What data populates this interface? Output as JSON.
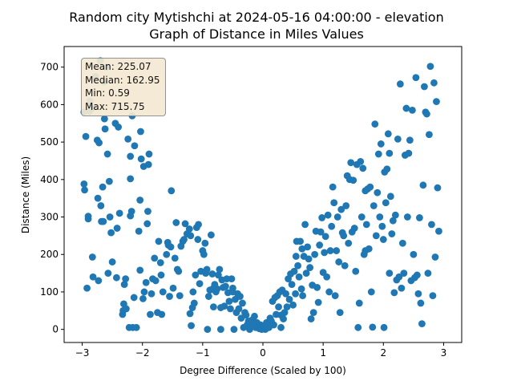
{
  "chart_data": {
    "type": "scatter",
    "title": "Random city Mytishchi at 2024-05-16 04:00:00  - elevation",
    "subtitle": "Graph of Distance in Miles Values",
    "xlabel": "Degree Difference (Scaled by 100)",
    "ylabel": "Distance (Miles)",
    "xlim": [
      -3.3,
      3.3
    ],
    "ylim": [
      -35,
      755
    ],
    "xticks": [
      -3,
      -2,
      -1,
      0,
      1,
      2,
      3
    ],
    "yticks": [
      0,
      100,
      200,
      300,
      400,
      500,
      600,
      700
    ],
    "grid": false,
    "color": "#1f77b4",
    "stats": {
      "mean": "Mean: 225.07",
      "median": "Median: 162.95",
      "min": "Min: 0.59",
      "max": "Max: 715.75"
    },
    "points": [
      [
        -2.97,
        580
      ],
      [
        -2.97,
        388
      ],
      [
        -2.96,
        372
      ],
      [
        -2.94,
        515
      ],
      [
        -2.92,
        110
      ],
      [
        -2.9,
        295
      ],
      [
        -2.9,
        302
      ],
      [
        -2.88,
        582
      ],
      [
        -2.87,
        610
      ],
      [
        -2.84,
        590
      ],
      [
        -2.83,
        193
      ],
      [
        -2.82,
        140
      ],
      [
        -2.78,
        675
      ],
      [
        -2.75,
        505
      ],
      [
        -2.74,
        350
      ],
      [
        -2.73,
        130
      ],
      [
        -2.72,
        498
      ],
      [
        -2.7,
        717
      ],
      [
        -2.69,
        330
      ],
      [
        -2.68,
        288
      ],
      [
        -2.66,
        380
      ],
      [
        -2.65,
        288
      ],
      [
        -2.64,
        660
      ],
      [
        -2.63,
        562
      ],
      [
        -2.62,
        535
      ],
      [
        -2.6,
        700
      ],
      [
        -2.58,
        468
      ],
      [
        -2.57,
        150
      ],
      [
        -2.55,
        395
      ],
      [
        -2.54,
        300
      ],
      [
        -2.52,
        258
      ],
      [
        -2.5,
        180
      ],
      [
        -2.45,
        550
      ],
      [
        -2.43,
        138
      ],
      [
        -2.42,
        270
      ],
      [
        -2.4,
        540
      ],
      [
        -2.38,
        310
      ],
      [
        -2.33,
        40
      ],
      [
        -2.32,
        50
      ],
      [
        -2.31,
        68
      ],
      [
        -2.3,
        120
      ],
      [
        -2.28,
        135
      ],
      [
        -2.27,
        55
      ],
      [
        -2.24,
        508
      ],
      [
        -2.22,
        5
      ],
      [
        -2.2,
        402
      ],
      [
        -2.2,
        462
      ],
      [
        -2.2,
        303
      ],
      [
        -2.18,
        315
      ],
      [
        -2.17,
        570
      ],
      [
        -2.16,
        5
      ],
      [
        -2.14,
        85
      ],
      [
        -2.13,
        490
      ],
      [
        -2.1,
        5
      ],
      [
        -2.06,
        262
      ],
      [
        -2.04,
        158
      ],
      [
        -2.04,
        345
      ],
      [
        -2.03,
        528
      ],
      [
        -2.02,
        455
      ],
      [
        -1.99,
        82
      ],
      [
        -1.98,
        435
      ],
      [
        -1.97,
        100
      ],
      [
        -1.94,
        125
      ],
      [
        -1.92,
        282
      ],
      [
        -1.91,
        315
      ],
      [
        -1.9,
        440
      ],
      [
        -1.89,
        468
      ],
      [
        -1.87,
        40
      ],
      [
        -1.85,
        95
      ],
      [
        -1.83,
        135
      ],
      [
        -1.8,
        190
      ],
      [
        -1.78,
        130
      ],
      [
        -1.75,
        45
      ],
      [
        -1.73,
        235
      ],
      [
        -1.7,
        178
      ],
      [
        -1.69,
        145
      ],
      [
        -1.68,
        40
      ],
      [
        -1.66,
        100
      ],
      [
        -1.6,
        200
      ],
      [
        -1.58,
        232
      ],
      [
        -1.57,
        225
      ],
      [
        -1.55,
        88
      ],
      [
        -1.53,
        220
      ],
      [
        -1.52,
        370
      ],
      [
        -1.49,
        110
      ],
      [
        -1.46,
        190
      ],
      [
        -1.44,
        285
      ],
      [
        -1.42,
        160
      ],
      [
        -1.4,
        155
      ],
      [
        -1.38,
        90
      ],
      [
        -1.36,
        222
      ],
      [
        -1.33,
        235
      ],
      [
        -1.31,
        240
      ],
      [
        -1.29,
        282
      ],
      [
        -1.26,
        255
      ],
      [
        -1.22,
        268
      ],
      [
        -1.2,
        250
      ],
      [
        -1.19,
        10
      ],
      [
        -1.17,
        58
      ],
      [
        -1.16,
        100
      ],
      [
        -1.14,
        70
      ],
      [
        -1.12,
        145
      ],
      [
        -1.1,
        272
      ],
      [
        -1.08,
        240
      ],
      [
        -1.07,
        280
      ],
      [
        -1.05,
        122
      ],
      [
        -1.03,
        155
      ],
      [
        -1.0,
        210
      ],
      [
        -0.98,
        200
      ],
      [
        -0.96,
        230
      ],
      [
        -0.95,
        150
      ],
      [
        -0.93,
        160
      ],
      [
        -0.92,
        0
      ],
      [
        -0.9,
        88
      ],
      [
        -0.88,
        105
      ],
      [
        -0.86,
        252
      ],
      [
        -0.84,
        148
      ],
      [
        -0.82,
        110
      ],
      [
        -0.8,
        120
      ],
      [
        -0.78,
        100
      ],
      [
        -0.76,
        108
      ],
      [
        -0.74,
        145
      ],
      [
        -0.72,
        160
      ],
      [
        -0.7,
        0
      ],
      [
        -0.68,
        132
      ],
      [
        -0.66,
        112
      ],
      [
        -0.64,
        62
      ],
      [
        -0.62,
        115
      ],
      [
        -0.6,
        135
      ],
      [
        -0.58,
        98
      ],
      [
        -0.56,
        75
      ],
      [
        -0.54,
        55
      ],
      [
        -0.52,
        135
      ],
      [
        -0.5,
        110
      ],
      [
        -0.48,
        0
      ],
      [
        -0.46,
        80
      ],
      [
        -0.44,
        45
      ],
      [
        -0.42,
        95
      ],
      [
        -0.4,
        55
      ],
      [
        -0.38,
        88
      ],
      [
        -0.36,
        30
      ],
      [
        -0.34,
        70
      ],
      [
        -0.32,
        5
      ],
      [
        -0.3,
        45
      ],
      [
        -0.28,
        38
      ],
      [
        -0.26,
        12
      ],
      [
        -0.24,
        22
      ],
      [
        -0.22,
        0
      ],
      [
        -0.2,
        8
      ],
      [
        -0.18,
        25
      ],
      [
        -0.16,
        15
      ],
      [
        -0.14,
        35
      ],
      [
        -0.12,
        5
      ],
      [
        -0.1,
        18
      ],
      [
        -0.08,
        8
      ],
      [
        -0.06,
        2
      ],
      [
        -0.04,
        12
      ],
      [
        -0.02,
        0
      ],
      [
        0.0,
        3
      ],
      [
        0.02,
        10
      ],
      [
        0.04,
        0
      ],
      [
        0.06,
        18
      ],
      [
        0.08,
        8
      ],
      [
        0.1,
        5
      ],
      [
        0.12,
        30
      ],
      [
        0.14,
        22
      ],
      [
        0.16,
        75
      ],
      [
        0.18,
        12
      ],
      [
        0.2,
        85
      ],
      [
        0.22,
        40
      ],
      [
        0.24,
        90
      ],
      [
        0.26,
        60
      ],
      [
        0.28,
        100
      ],
      [
        0.3,
        5
      ],
      [
        0.32,
        105
      ],
      [
        0.34,
        28
      ],
      [
        0.36,
        45
      ],
      [
        0.38,
        95
      ],
      [
        0.4,
        60
      ],
      [
        0.42,
        135
      ],
      [
        0.44,
        80
      ],
      [
        0.46,
        148
      ],
      [
        0.48,
        120
      ],
      [
        0.5,
        65
      ],
      [
        0.52,
        155
      ],
      [
        0.54,
        95
      ],
      [
        0.55,
        195
      ],
      [
        0.56,
        235
      ],
      [
        0.58,
        170
      ],
      [
        0.6,
        140
      ],
      [
        0.62,
        235
      ],
      [
        0.64,
        108
      ],
      [
        0.65,
        215
      ],
      [
        0.66,
        90
      ],
      [
        0.68,
        195
      ],
      [
        0.7,
        280
      ],
      [
        0.72,
        150
      ],
      [
        0.74,
        220
      ],
      [
        0.76,
        188
      ],
      [
        0.78,
        165
      ],
      [
        0.8,
        28
      ],
      [
        0.82,
        118
      ],
      [
        0.84,
        45
      ],
      [
        0.86,
        200
      ],
      [
        0.88,
        262
      ],
      [
        0.9,
        112
      ],
      [
        0.92,
        72
      ],
      [
        0.94,
        225
      ],
      [
        0.96,
        260
      ],
      [
        0.98,
        298
      ],
      [
        1.0,
        152
      ],
      [
        1.02,
        205
      ],
      [
        1.04,
        248
      ],
      [
        1.06,
        140
      ],
      [
        1.08,
        305
      ],
      [
        1.1,
        100
      ],
      [
        1.12,
        210
      ],
      [
        1.14,
        275
      ],
      [
        1.16,
        380
      ],
      [
        1.18,
        338
      ],
      [
        1.2,
        90
      ],
      [
        1.22,
        210
      ],
      [
        1.24,
        300
      ],
      [
        1.26,
        180
      ],
      [
        1.28,
        45
      ],
      [
        1.3,
        320
      ],
      [
        1.32,
        258
      ],
      [
        1.34,
        250
      ],
      [
        1.36,
        170
      ],
      [
        1.38,
        330
      ],
      [
        1.4,
        410
      ],
      [
        1.42,
        230
      ],
      [
        1.44,
        400
      ],
      [
        1.46,
        445
      ],
      [
        1.48,
        260
      ],
      [
        1.5,
        398
      ],
      [
        1.52,
        270
      ],
      [
        1.54,
        155
      ],
      [
        1.56,
        440
      ],
      [
        1.58,
        5
      ],
      [
        1.6,
        70
      ],
      [
        1.62,
        448
      ],
      [
        1.64,
        300
      ],
      [
        1.66,
        430
      ],
      [
        1.68,
        200
      ],
      [
        1.7,
        370
      ],
      [
        1.72,
        280
      ],
      [
        1.74,
        375
      ],
      [
        1.76,
        215
      ],
      [
        1.78,
        380
      ],
      [
        1.8,
        100
      ],
      [
        1.82,
        6
      ],
      [
        1.84,
        330
      ],
      [
        1.86,
        548
      ],
      [
        1.88,
        250
      ],
      [
        1.9,
        365
      ],
      [
        1.92,
        468
      ],
      [
        1.94,
        300
      ],
      [
        1.96,
        495
      ],
      [
        1.98,
        275
      ],
      [
        2.0,
        240
      ],
      [
        2.02,
        420
      ],
      [
        2.04,
        338
      ],
      [
        2.06,
        428
      ],
      [
        2.08,
        522
      ],
      [
        2.1,
        470
      ],
      [
        2.12,
        355
      ],
      [
        2.14,
        255
      ],
      [
        2.16,
        290
      ],
      [
        2.18,
        98
      ],
      [
        2.2,
        305
      ],
      [
        2.22,
        132
      ],
      [
        2.24,
        508
      ],
      [
        2.26,
        140
      ],
      [
        2.28,
        655
      ],
      [
        2.3,
        110
      ],
      [
        2.32,
        230
      ],
      [
        2.34,
        150
      ],
      [
        2.36,
        465
      ],
      [
        2.38,
        590
      ],
      [
        2.4,
        300
      ],
      [
        2.42,
        470
      ],
      [
        2.44,
        505
      ],
      [
        2.46,
        130
      ],
      [
        2.48,
        585
      ],
      [
        2.5,
        200
      ],
      [
        2.52,
        138
      ],
      [
        2.54,
        672
      ],
      [
        2.56,
        145
      ],
      [
        2.58,
        95
      ],
      [
        2.6,
        298
      ],
      [
        2.62,
        70
      ],
      [
        2.64,
        15
      ],
      [
        2.66,
        385
      ],
      [
        2.68,
        648
      ],
      [
        2.7,
        580
      ],
      [
        2.72,
        575
      ],
      [
        2.74,
        150
      ],
      [
        2.76,
        520
      ],
      [
        2.78,
        702
      ],
      [
        2.8,
        280
      ],
      [
        2.82,
        90
      ],
      [
        2.84,
        658
      ],
      [
        2.86,
        193
      ],
      [
        2.88,
        608
      ],
      [
        2.9,
        378
      ],
      [
        2.92,
        262
      ],
      [
        -0.7,
        58
      ],
      [
        -1.21,
        42
      ],
      [
        -0.5,
        100
      ],
      [
        1.7,
        210
      ],
      [
        2.01,
        5
      ],
      [
        2.1,
        150
      ],
      [
        0.3,
        38
      ],
      [
        -0.82,
        60
      ]
    ]
  }
}
